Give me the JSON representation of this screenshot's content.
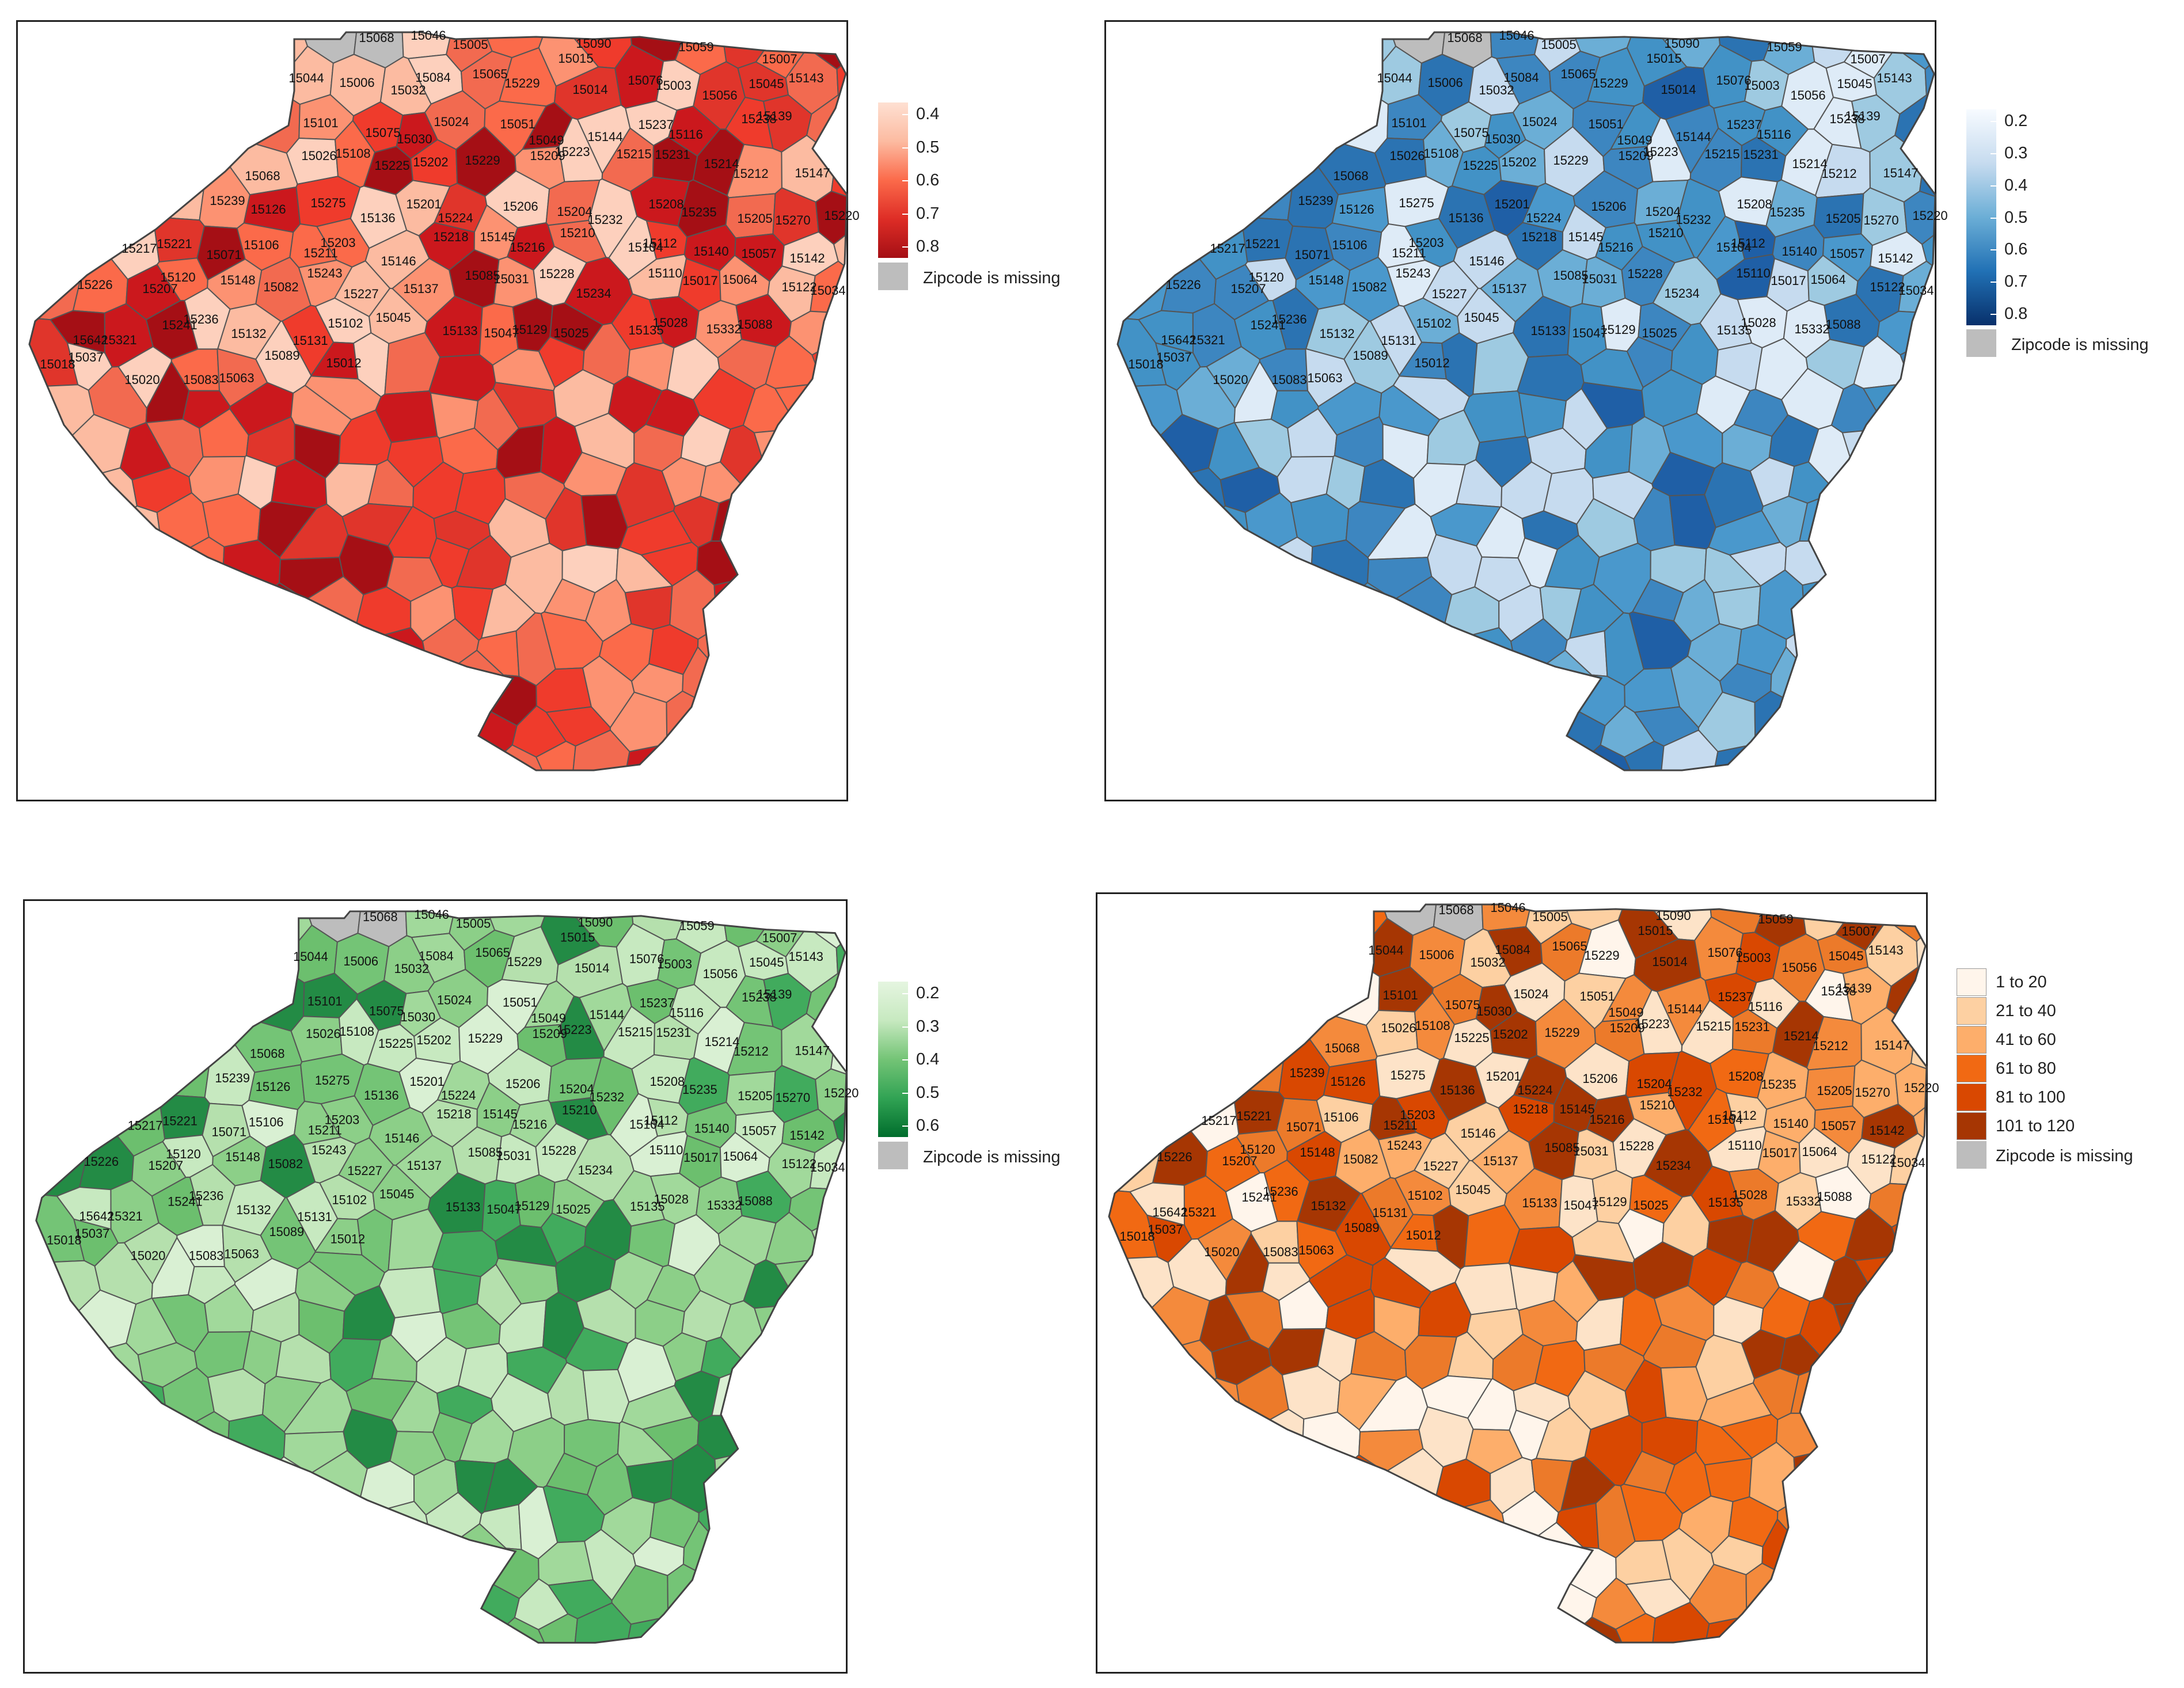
{
  "shared": {
    "missing_label": "Zipcode is missing",
    "missing_color": "#bdbdbd",
    "border_color": "#555555",
    "zip_labels": [
      "15068",
      "15046",
      "15005",
      "15015",
      "15090",
      "15059",
      "15007",
      "15044",
      "15006",
      "15032",
      "15084",
      "15065",
      "15229",
      "15014",
      "15076",
      "15003",
      "15056",
      "15045",
      "15143",
      "15101",
      "15075",
      "15030",
      "15024",
      "15051",
      "15049",
      "15144",
      "15237",
      "15116",
      "15238",
      "15139",
      "15068",
      "15026",
      "15108",
      "15225",
      "15202",
      "15229",
      "15209",
      "15223",
      "15215",
      "15231",
      "15214",
      "15212",
      "15147",
      "15239",
      "15126",
      "15275",
      "15136",
      "15201",
      "15224",
      "15206",
      "15204",
      "15232",
      "15208",
      "15235",
      "15205",
      "15270",
      "15220",
      "15217",
      "15221",
      "15071",
      "15106",
      "15211",
      "15203",
      "15146",
      "15218",
      "15145",
      "15216",
      "15210",
      "15104",
      "15112",
      "15140",
      "15057",
      "15142",
      "15226",
      "15207",
      "15120",
      "15148",
      "15082",
      "15243",
      "15227",
      "15137",
      "15085",
      "15031",
      "15228",
      "15234",
      "15110",
      "15017",
      "15064",
      "15122",
      "15034",
      "15642",
      "15321",
      "15241",
      "15236",
      "15132",
      "15131",
      "15102",
      "15045",
      "15133",
      "15047",
      "15129",
      "15025",
      "15135",
      "15028",
      "15332",
      "15088",
      "15018",
      "15037",
      "15020",
      "15083",
      "15063",
      "15089",
      "15012"
    ]
  },
  "maps": [
    {
      "id": "map-red",
      "legend_type": "continuous",
      "legend_ticks": [
        "0.4",
        "0.5",
        "0.6",
        "0.7",
        "0.8"
      ],
      "gradient": [
        "#fee0d2",
        "#fcbba1",
        "#fb6a4a",
        "#de2d26",
        "#a50f15"
      ],
      "palette": [
        "#fcbba1",
        "#fc9272",
        "#fb6a4a",
        "#ef3b2c",
        "#e0352b",
        "#cb181d",
        "#a50f15",
        "#fdd0bd",
        "#f26a50"
      ]
    },
    {
      "id": "map-blue",
      "legend_type": "continuous",
      "legend_ticks": [
        "0.2",
        "0.3",
        "0.4",
        "0.5",
        "0.6",
        "0.7",
        "0.8"
      ],
      "gradient": [
        "#f7fbff",
        "#c6dbef",
        "#6baed6",
        "#2171b5",
        "#08306b"
      ],
      "palette": [
        "#9ecae1",
        "#6baed6",
        "#4a98cc",
        "#4292c6",
        "#3d86c0",
        "#2b73b2",
        "#c6dbef",
        "#deebf7",
        "#1f5fa6"
      ]
    },
    {
      "id": "map-green",
      "legend_type": "continuous",
      "legend_ticks": [
        "0.2",
        "0.3",
        "0.4",
        "0.5",
        "0.6"
      ],
      "gradient": [
        "#e5f5e0",
        "#c7e9c0",
        "#74c476",
        "#31a354",
        "#006d2c"
      ],
      "palette": [
        "#c7e9c0",
        "#a1d99b",
        "#74c476",
        "#8ccf88",
        "#b5e0ad",
        "#41ab5d",
        "#238b45",
        "#d9f0d3",
        "#6cbf6e"
      ]
    },
    {
      "id": "map-orange",
      "legend_type": "categorical",
      "categories": [
        {
          "label": "1 to 20",
          "color": "#fff5eb"
        },
        {
          "label": "21 to 40",
          "color": "#fdd0a2"
        },
        {
          "label": "41 to 60",
          "color": "#fdae6b"
        },
        {
          "label": "61 to 80",
          "color": "#f16913"
        },
        {
          "label": "81 to 100",
          "color": "#d94801"
        },
        {
          "label": "101 to 120",
          "color": "#a63603"
        }
      ],
      "palette": [
        "#fdd0a2",
        "#fdae6b",
        "#f16913",
        "#ec7a2a",
        "#d94801",
        "#fff5eb",
        "#fde3c8",
        "#f48a3c",
        "#a63603"
      ]
    }
  ]
}
